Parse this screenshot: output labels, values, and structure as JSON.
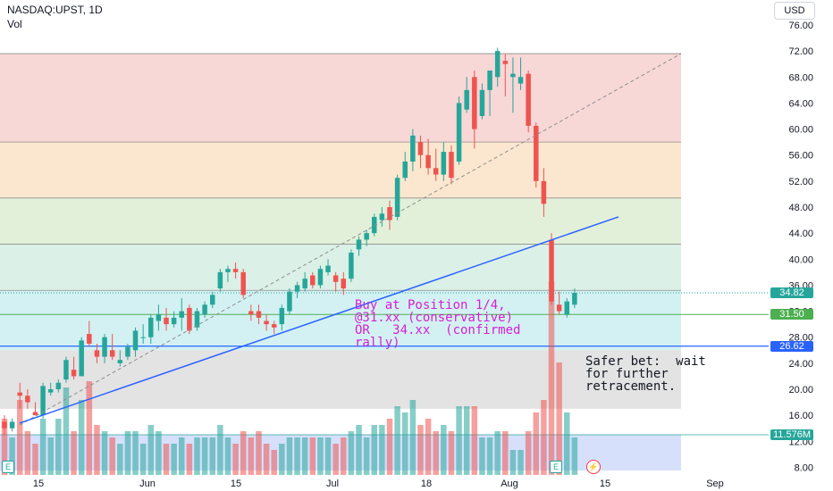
{
  "header": {
    "symbol": "NASDAQ:UPST, 1D",
    "volume_label": "Vol",
    "currency": "USD"
  },
  "price_labels": [
    {
      "value": "34.82",
      "price": 34.82,
      "color": "#26a69a"
    },
    {
      "value": "31.50",
      "price": 31.5,
      "color": "#4caf50"
    },
    {
      "value": "26.62",
      "price": 26.62,
      "color": "#2962ff"
    },
    {
      "value": "11.576M",
      "price": 13.0,
      "color": "#26a69a"
    }
  ],
  "annotations": {
    "buy": "Buy at Position 1/4,\n@31.xx (conservative)\nOR   34.xx  (confirmed\nrally)",
    "safer": "Safer bet:  wait\nfor further\nretracement."
  },
  "icons": {
    "earnings_1": "E",
    "earnings_2": "E",
    "dividend_bolt": "⚡"
  },
  "chart_data": {
    "type": "candlestick",
    "title": "NASDAQ:UPST, 1D",
    "y_ticks": [
      8,
      12,
      16,
      20,
      24,
      28,
      32,
      36,
      40,
      44,
      48,
      52,
      56,
      60,
      64,
      68,
      72,
      76
    ],
    "y_tick_labels": [
      "8.00",
      "12.00",
      "16.00",
      "20.00",
      "24.00",
      "28.00",
      "32.00",
      "36.00",
      "40.00",
      "44.00",
      "48.00",
      "52.00",
      "56.00",
      "60.00",
      "64.00",
      "68.00",
      "72.00",
      "76.00"
    ],
    "ylim": [
      6,
      79
    ],
    "x_ticks": [
      "15",
      "Jun",
      "15",
      "Jul",
      "18",
      "Aug",
      "15",
      "Sep"
    ],
    "last_price": 34.82,
    "last_volume": "11.576M",
    "bands": [
      {
        "from": 58.0,
        "to": 71.6,
        "color": "#f8d7d7"
      },
      {
        "from": 49.4,
        "to": 58.0,
        "color": "#fbe7cf"
      },
      {
        "from": 42.3,
        "to": 49.4,
        "color": "#e2f0da"
      },
      {
        "from": 35.2,
        "to": 42.3,
        "color": "#dbf0e6"
      },
      {
        "from": 26.0,
        "to": 35.2,
        "color": "#d3f1f2"
      },
      {
        "from": 17.0,
        "to": 26.0,
        "color": "#e3e3e3"
      },
      {
        "from": 7.5,
        "to": 13.0,
        "color": "#d6e0fb"
      }
    ],
    "candles": [
      {
        "o": 15.0,
        "h": 16.0,
        "l": 13.0,
        "c": 14.0,
        "v": 0.45
      },
      {
        "o": 14.0,
        "h": 15.5,
        "l": 13.5,
        "c": 15.0,
        "v": 0.3
      },
      {
        "o": 19.5,
        "h": 21.0,
        "l": 17.0,
        "c": 19.0,
        "v": 0.6
      },
      {
        "o": 19.0,
        "h": 20.0,
        "l": 17.0,
        "c": 18.0,
        "v": 0.35
      },
      {
        "o": 16.5,
        "h": 18.0,
        "l": 16.0,
        "c": 16.0,
        "v": 0.25
      },
      {
        "o": 16.0,
        "h": 21.0,
        "l": 15.5,
        "c": 20.5,
        "v": 0.45
      },
      {
        "o": 19.5,
        "h": 21.0,
        "l": 19.0,
        "c": 20.0,
        "v": 0.3
      },
      {
        "o": 20.0,
        "h": 21.5,
        "l": 19.5,
        "c": 21.0,
        "v": 0.45
      },
      {
        "o": 21.5,
        "h": 25.0,
        "l": 21.0,
        "c": 24.5,
        "v": 0.7
      },
      {
        "o": 23.0,
        "h": 25.0,
        "l": 21.5,
        "c": 22.0,
        "v": 0.35
      },
      {
        "o": 22.0,
        "h": 28.0,
        "l": 22.0,
        "c": 27.5,
        "v": 0.6
      },
      {
        "o": 28.5,
        "h": 30.5,
        "l": 26.5,
        "c": 27.0,
        "v": 0.75
      },
      {
        "o": 26.0,
        "h": 27.0,
        "l": 24.0,
        "c": 25.0,
        "v": 0.4
      },
      {
        "o": 25.0,
        "h": 28.5,
        "l": 24.0,
        "c": 28.0,
        "v": 0.35
      },
      {
        "o": 26.0,
        "h": 28.5,
        "l": 24.5,
        "c": 25.0,
        "v": 0.3
      },
      {
        "o": 24.0,
        "h": 26.0,
        "l": 23.5,
        "c": 24.5,
        "v": 0.25
      },
      {
        "o": 25.0,
        "h": 27.0,
        "l": 24.5,
        "c": 26.5,
        "v": 0.35
      },
      {
        "o": 26.0,
        "h": 29.5,
        "l": 25.0,
        "c": 29.0,
        "v": 0.35
      },
      {
        "o": 28.0,
        "h": 30.0,
        "l": 27.0,
        "c": 28.0,
        "v": 0.25
      },
      {
        "o": 28.0,
        "h": 31.5,
        "l": 27.0,
        "c": 31.0,
        "v": 0.4
      },
      {
        "o": 30.5,
        "h": 33.0,
        "l": 29.0,
        "c": 31.5,
        "v": 0.35
      },
      {
        "o": 31.0,
        "h": 32.5,
        "l": 29.0,
        "c": 30.0,
        "v": 0.25
      },
      {
        "o": 30.0,
        "h": 32.0,
        "l": 29.5,
        "c": 31.0,
        "v": 0.25
      },
      {
        "o": 31.0,
        "h": 34.0,
        "l": 29.0,
        "c": 32.0,
        "v": 0.3
      },
      {
        "o": 32.5,
        "h": 33.0,
        "l": 28.5,
        "c": 29.0,
        "v": 0.25
      },
      {
        "o": 29.5,
        "h": 32.5,
        "l": 29.0,
        "c": 32.0,
        "v": 0.3
      },
      {
        "o": 31.5,
        "h": 33.5,
        "l": 31.0,
        "c": 33.0,
        "v": 0.3
      },
      {
        "o": 33.0,
        "h": 35.0,
        "l": 32.5,
        "c": 34.5,
        "v": 0.3
      },
      {
        "o": 35.5,
        "h": 38.5,
        "l": 35.0,
        "c": 38.0,
        "v": 0.4
      },
      {
        "o": 38.0,
        "h": 39.0,
        "l": 36.5,
        "c": 38.5,
        "v": 0.3
      },
      {
        "o": 38.5,
        "h": 39.5,
        "l": 37.0,
        "c": 38.0,
        "v": 0.25
      },
      {
        "o": 38.0,
        "h": 38.5,
        "l": 34.0,
        "c": 34.5,
        "v": 0.35
      },
      {
        "o": 32.0,
        "h": 33.0,
        "l": 30.5,
        "c": 31.5,
        "v": 0.3
      },
      {
        "o": 32.0,
        "h": 33.0,
        "l": 30.0,
        "c": 31.0,
        "v": 0.35
      },
      {
        "o": 30.5,
        "h": 31.5,
        "l": 29.0,
        "c": 30.0,
        "v": 0.25
      },
      {
        "o": 30.0,
        "h": 30.5,
        "l": 28.5,
        "c": 29.5,
        "v": 0.2
      },
      {
        "o": 30.0,
        "h": 33.0,
        "l": 29.0,
        "c": 32.5,
        "v": 0.25
      },
      {
        "o": 32.0,
        "h": 35.5,
        "l": 31.5,
        "c": 35.0,
        "v": 0.3
      },
      {
        "o": 35.0,
        "h": 36.5,
        "l": 34.0,
        "c": 36.0,
        "v": 0.3
      },
      {
        "o": 35.5,
        "h": 38.0,
        "l": 35.0,
        "c": 37.0,
        "v": 0.3
      },
      {
        "o": 37.5,
        "h": 38.0,
        "l": 35.5,
        "c": 36.0,
        "v": 0.3
      },
      {
        "o": 36.0,
        "h": 39.0,
        "l": 35.5,
        "c": 38.5,
        "v": 0.3
      },
      {
        "o": 38.0,
        "h": 40.0,
        "l": 37.5,
        "c": 39.0,
        "v": 0.3
      },
      {
        "o": 37.5,
        "h": 38.0,
        "l": 35.0,
        "c": 36.5,
        "v": 0.25
      },
      {
        "o": 37.0,
        "h": 38.0,
        "l": 34.5,
        "c": 35.5,
        "v": 0.3
      },
      {
        "o": 37.0,
        "h": 41.5,
        "l": 36.5,
        "c": 41.0,
        "v": 0.35
      },
      {
        "o": 41.5,
        "h": 43.5,
        "l": 40.5,
        "c": 43.0,
        "v": 0.4
      },
      {
        "o": 43.0,
        "h": 44.5,
        "l": 42.0,
        "c": 44.0,
        "v": 0.3
      },
      {
        "o": 44.0,
        "h": 47.0,
        "l": 43.5,
        "c": 46.5,
        "v": 0.4
      },
      {
        "o": 46.0,
        "h": 48.0,
        "l": 45.0,
        "c": 47.0,
        "v": 0.4
      },
      {
        "o": 48.0,
        "h": 49.0,
        "l": 44.5,
        "c": 46.0,
        "v": 0.45
      },
      {
        "o": 46.5,
        "h": 53.0,
        "l": 46.0,
        "c": 52.5,
        "v": 0.55
      },
      {
        "o": 52.5,
        "h": 56.5,
        "l": 52.0,
        "c": 55.0,
        "v": 0.5
      },
      {
        "o": 55.0,
        "h": 60.0,
        "l": 53.5,
        "c": 59.0,
        "v": 0.6
      },
      {
        "o": 58.0,
        "h": 59.0,
        "l": 54.0,
        "c": 56.0,
        "v": 0.4
      },
      {
        "o": 56.0,
        "h": 58.5,
        "l": 53.0,
        "c": 54.0,
        "v": 0.45
      },
      {
        "o": 54.0,
        "h": 57.0,
        "l": 52.0,
        "c": 53.0,
        "v": 0.35
      },
      {
        "o": 53.0,
        "h": 58.0,
        "l": 52.0,
        "c": 56.5,
        "v": 0.4
      },
      {
        "o": 56.5,
        "h": 57.5,
        "l": 51.5,
        "c": 52.5,
        "v": 0.35
      },
      {
        "o": 55.0,
        "h": 65.0,
        "l": 54.5,
        "c": 64.0,
        "v": 0.55
      },
      {
        "o": 63.0,
        "h": 68.0,
        "l": 62.5,
        "c": 66.0,
        "v": 0.55
      },
      {
        "o": 68.0,
        "h": 69.0,
        "l": 57.0,
        "c": 60.0,
        "v": 0.55
      },
      {
        "o": 62.0,
        "h": 67.0,
        "l": 61.5,
        "c": 66.0,
        "v": 0.3
      },
      {
        "o": 66.0,
        "h": 69.0,
        "l": 62.0,
        "c": 69.0,
        "v": 0.3
      },
      {
        "o": 68.0,
        "h": 72.5,
        "l": 66.5,
        "c": 72.0,
        "v": 0.35
      },
      {
        "o": 70.5,
        "h": 71.5,
        "l": 65.0,
        "c": 70.0,
        "v": 0.35
      },
      {
        "o": 68.0,
        "h": 71.0,
        "l": 62.5,
        "c": 68.5,
        "v": 0.2
      },
      {
        "o": 67.0,
        "h": 71.0,
        "l": 66.0,
        "c": 68.0,
        "v": 0.2
      },
      {
        "o": 68.5,
        "h": 69.0,
        "l": 59.5,
        "c": 60.5,
        "v": 0.35
      },
      {
        "o": 60.5,
        "h": 61.0,
        "l": 51.0,
        "c": 52.0,
        "v": 0.5
      },
      {
        "o": 52.0,
        "h": 54.0,
        "l": 46.5,
        "c": 48.5,
        "v": 0.6
      },
      {
        "o": 43.0,
        "h": 44.0,
        "l": 33.0,
        "c": 33.5,
        "v": 1.55
      },
      {
        "o": 33.0,
        "h": 35.0,
        "l": 31.5,
        "c": 32.0,
        "v": 0.9
      },
      {
        "o": 31.5,
        "h": 34.0,
        "l": 31.0,
        "c": 33.5,
        "v": 0.5
      },
      {
        "o": 33.0,
        "h": 35.5,
        "l": 32.5,
        "c": 34.82,
        "v": 0.3
      }
    ]
  }
}
